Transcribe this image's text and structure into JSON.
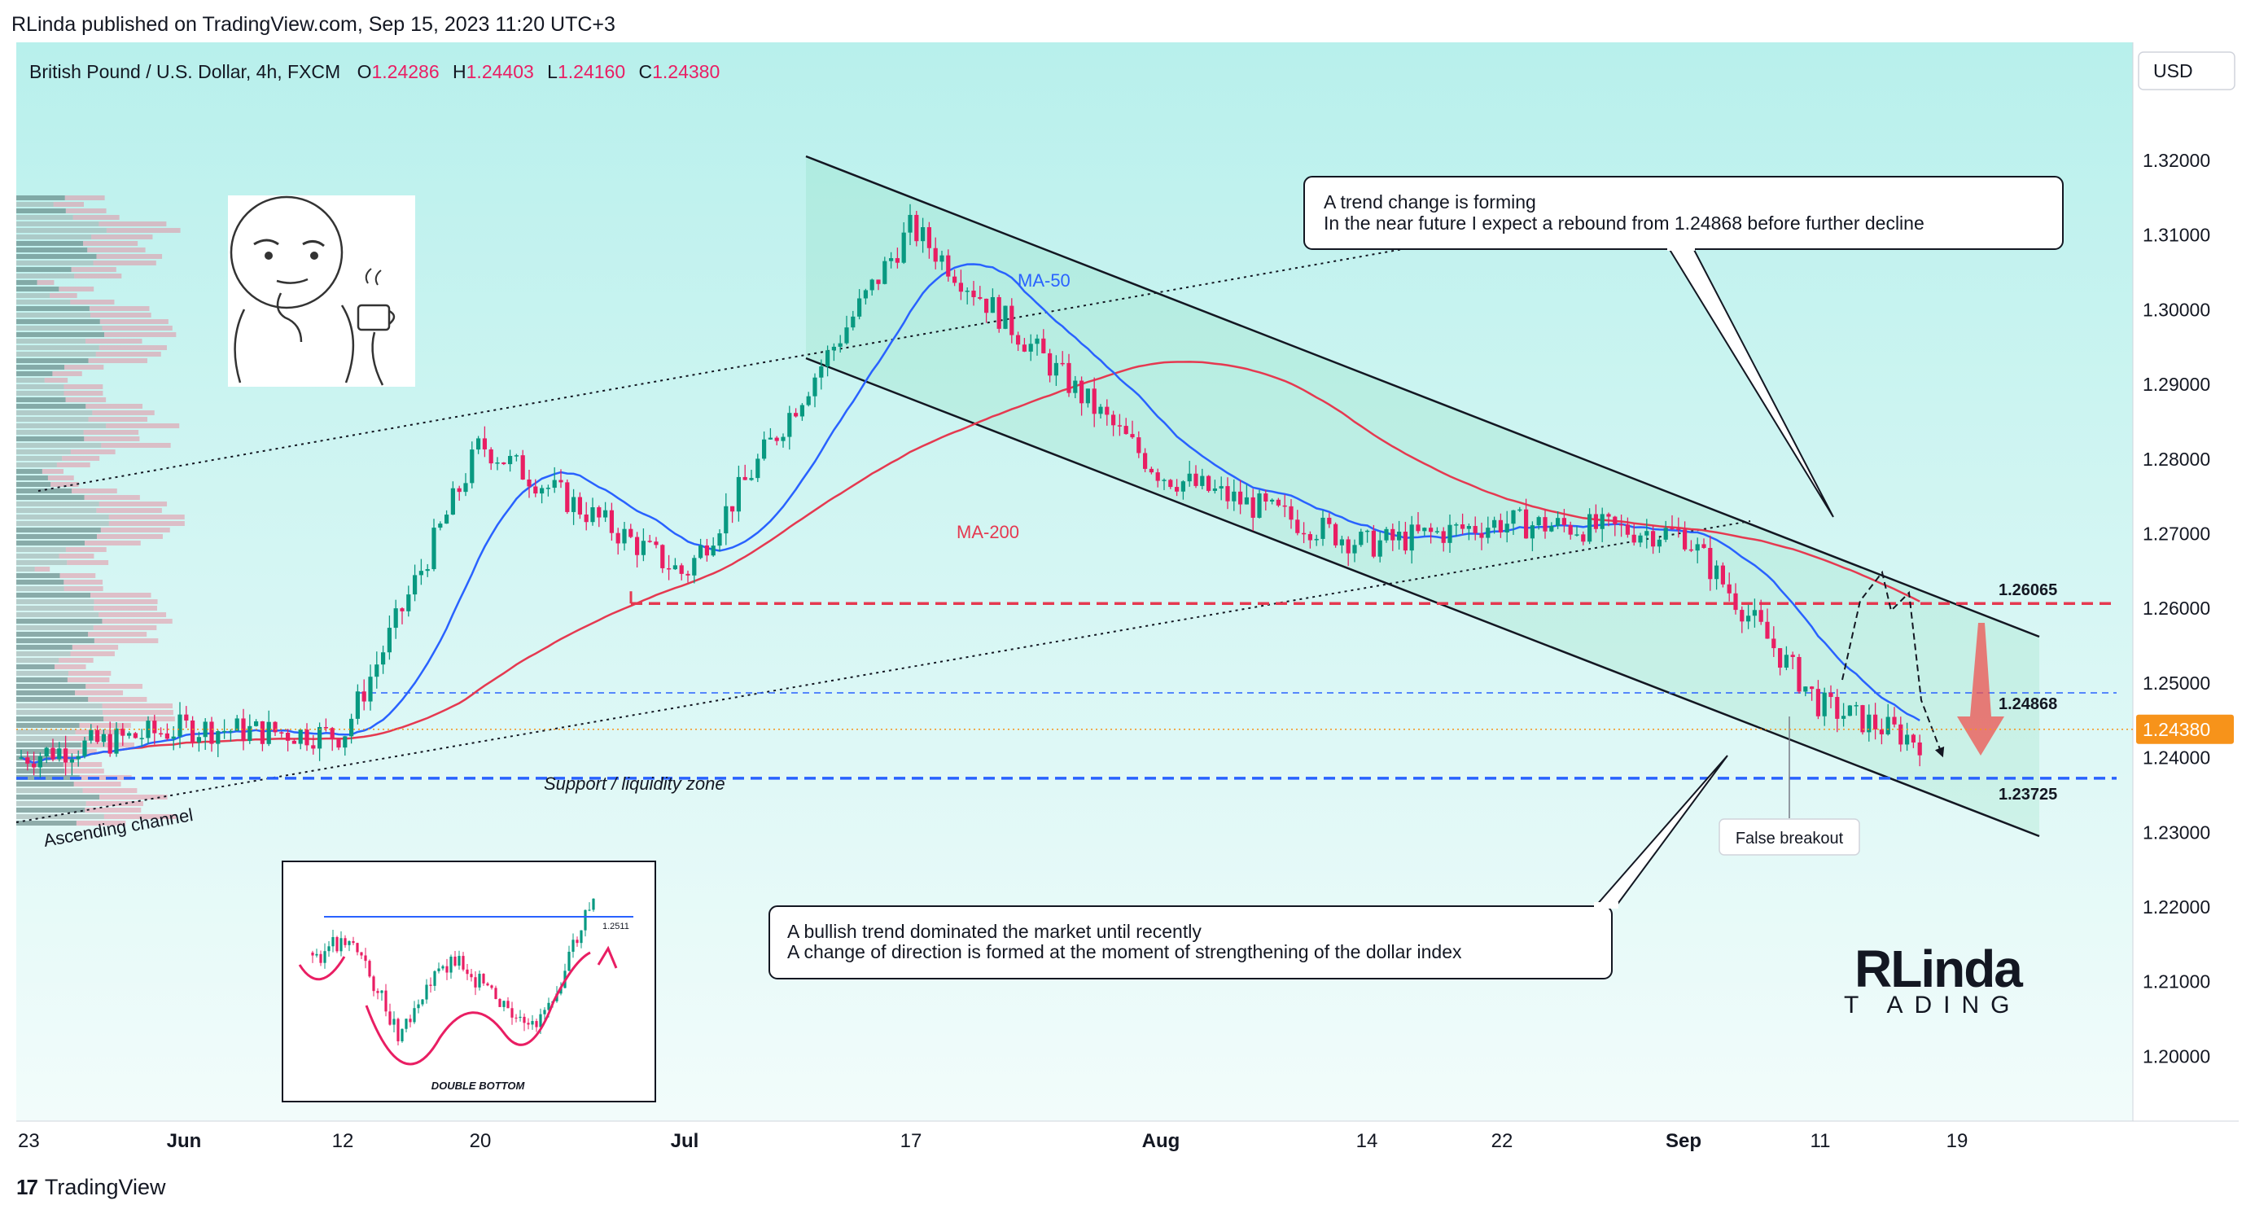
{
  "header": {
    "publisher": "RLinda published on TradingView.com, Sep 15, 2023 11:20 UTC+3",
    "symbol": "British Pound / U.S. Dollar, 4h, FXCM",
    "o_label": "O",
    "o_value": "1.24286",
    "h_label": "H",
    "h_value": "1.24403",
    "l_label": "L",
    "l_value": "1.24160",
    "c_label": "C",
    "c_value": "1.24380",
    "currency": "USD"
  },
  "footer": {
    "brand": "TradingView"
  },
  "colors": {
    "background_top": "#b8f0ec",
    "background_bottom": "#f2fcfb",
    "bull": "#089981",
    "bear": "#e91e63",
    "ma50": "#2962ff",
    "ma200": "#e53950",
    "support": "#2962ff",
    "resistance": "#e53950",
    "last_price": "#f7931a"
  },
  "chart_data": {
    "type": "candlestick",
    "title": "British Pound / U.S. Dollar, 4h, FXCM",
    "y_axis": {
      "ticks": [
        "1.32000",
        "1.31000",
        "1.30000",
        "1.29000",
        "1.28000",
        "1.27000",
        "1.26000",
        "1.25000",
        "1.24000",
        "1.23000",
        "1.22000",
        "1.21000",
        "1.20000"
      ],
      "ylim": [
        1.191,
        1.3265
      ]
    },
    "x_axis": {
      "ticks": [
        "23",
        "Jun",
        "12",
        "20",
        "Jul",
        "17",
        "Aug",
        "14",
        "22",
        "Sep",
        "11",
        "19"
      ]
    },
    "price_path": [
      [
        "23",
        1.24
      ],
      [
        "Jun",
        1.244
      ],
      [
        "12",
        1.243
      ],
      [
        "20",
        1.282
      ],
      [
        "Jul",
        1.2645
      ],
      [
        "17",
        1.311
      ],
      [
        "Aug",
        1.278
      ],
      [
        "14",
        1.2685
      ],
      [
        "22",
        1.2715
      ],
      [
        "Sep",
        1.27
      ],
      [
        "11",
        1.247
      ],
      [
        "19",
        1.2405
      ]
    ],
    "last_close": 1.2438,
    "levels": [
      {
        "label": "1.26065",
        "value": 1.26065,
        "style": "dashed-red"
      },
      {
        "label": "1.24868",
        "value": 1.24868,
        "style": "dashed-blue-thin"
      },
      {
        "label": "1.23725",
        "value": 1.23725,
        "style": "dashed-blue"
      }
    ],
    "indicators": [
      {
        "name": "MA-50",
        "color": "#2962ff"
      },
      {
        "name": "MA-200",
        "color": "#e53950"
      }
    ],
    "annotations": {
      "ascending_channel": "Ascending channel",
      "support_zone": "Support / liquidity zone",
      "false_breakout": "False breakout",
      "trend_note_line1": "A trend change is forming",
      "trend_note_line2": "In the near future I expect a rebound from 1.24868 before further decline",
      "bull_note_line1": "A bullish trend dominated the market until recently",
      "bull_note_line2": "A change of direction is formed at the moment of strengthening of the dollar index",
      "inset_caption": "DOUBLE BOTTOM",
      "inset_level": "1.2511"
    },
    "grid": false
  }
}
